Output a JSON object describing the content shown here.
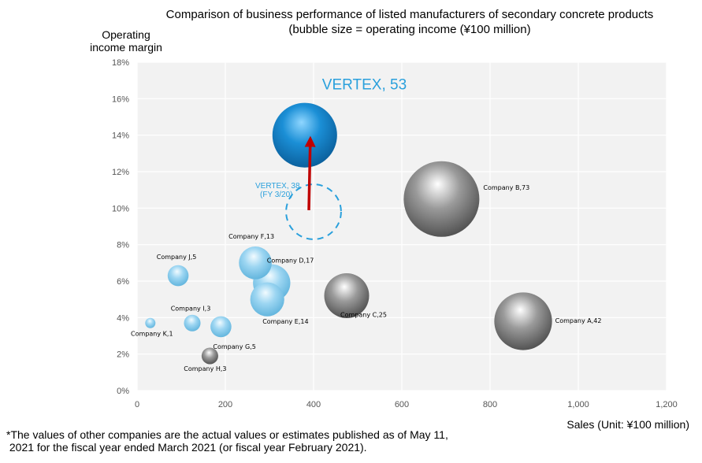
{
  "title_line1": "Comparison of business performance of listed manufacturers of secondary concrete products",
  "title_line2": "(bubble size = operating income (¥100 million)",
  "ylabel_line1": "Operating",
  "ylabel_line2": "income margin",
  "xlabel": "Sales (Unit: ¥100 million)",
  "footnote_line1": "*The values of other companies are the actual values or estimates published as of May 11,",
  "footnote_line2": " 2021 for the fiscal year ended March 2021 (or fiscal year February 2021).",
  "colors": {
    "blue": "#1b8fd6",
    "light_blue": "#8fd0ef",
    "gray": "#8a8a8a",
    "arrow": "#c00000",
    "vertex_text": "#2aa0dc",
    "plot_bg": "#f2f2f2",
    "grid": "#ffffff"
  },
  "chart_data": {
    "type": "scatter",
    "title": "Comparison of business performance of listed manufacturers of secondary concrete products",
    "subtitle": "(bubble size = operating income (¥100 million)",
    "xlabel": "Sales (Unit: ¥100 million)",
    "ylabel": "Operating income margin",
    "xlim": [
      0,
      1200
    ],
    "ylim": [
      0,
      18
    ],
    "xticks": [
      "0",
      "200",
      "400",
      "600",
      "800",
      "1,000",
      "1,200"
    ],
    "yticks": [
      "0%",
      "2%",
      "4%",
      "6%",
      "8%",
      "10%",
      "12%",
      "14%",
      "16%",
      "18%"
    ],
    "grid": true,
    "points": [
      {
        "label": "VERTEX, 53",
        "x": 380,
        "y": 14.0,
        "size": 53,
        "style": "blue"
      },
      {
        "label": "Company B,73",
        "x": 690,
        "y": 10.5,
        "size": 73,
        "style": "gray"
      },
      {
        "label": "Company A,42",
        "x": 875,
        "y": 3.8,
        "size": 42,
        "style": "gray"
      },
      {
        "label": "Company C,25",
        "x": 475,
        "y": 5.2,
        "size": 25,
        "style": "gray"
      },
      {
        "label": "Company D,17",
        "x": 305,
        "y": 5.9,
        "size": 17,
        "style": "light"
      },
      {
        "label": "Company E,14",
        "x": 295,
        "y": 5.0,
        "size": 14,
        "style": "light"
      },
      {
        "label": "Company F,13",
        "x": 268,
        "y": 7.0,
        "size": 13,
        "style": "light"
      },
      {
        "label": "Company J,5",
        "x": 93,
        "y": 6.3,
        "size": 5,
        "style": "light"
      },
      {
        "label": "Company I,3",
        "x": 125,
        "y": 3.7,
        "size": 3,
        "style": "light"
      },
      {
        "label": "Company G,5",
        "x": 190,
        "y": 3.5,
        "size": 5,
        "style": "light"
      },
      {
        "label": "Company K,1",
        "x": 30,
        "y": 3.7,
        "size": 1,
        "style": "light"
      },
      {
        "label": "Company H,3",
        "x": 165,
        "y": 1.9,
        "size": 3,
        "style": "gray"
      }
    ],
    "previous": {
      "label_line1": "VERTEX, 38",
      "label_line2": "(FY 3/20)",
      "x": 400,
      "y": 9.8,
      "size": 38
    }
  }
}
